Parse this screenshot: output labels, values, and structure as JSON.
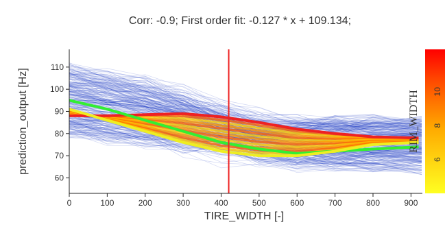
{
  "chart_data": {
    "type": "line",
    "title": "Corr: -0.9; First order fit: -0.127 * x + 109.134;",
    "xlabel": "TIRE_WIDTH  [-]",
    "ylabel": "prediction_output [Hz]",
    "xlim": [
      0,
      930
    ],
    "ylim": [
      53,
      118
    ],
    "x_ticks": [
      "0",
      "100",
      "200",
      "300",
      "400",
      "500",
      "600",
      "700",
      "800",
      "900"
    ],
    "y_ticks": [
      "60",
      "70",
      "80",
      "90",
      "100",
      "110"
    ],
    "vertical_marker_x": 420,
    "background_lines": {
      "count": 300,
      "color": "#2f49c7",
      "min_value": 58,
      "max_value": 112
    },
    "series": [
      {
        "color": "#ee2222",
        "x": [
          0,
          100,
          200,
          300,
          400,
          500,
          600,
          700,
          800,
          920
        ],
        "values": [
          88,
          88,
          88.5,
          89,
          87.5,
          85,
          82,
          80,
          78.5,
          78
        ]
      },
      {
        "color": "#33ee33",
        "x": [
          0,
          100,
          200,
          300,
          400,
          500,
          600,
          700,
          800,
          920
        ],
        "values": [
          95,
          91,
          86,
          81,
          76,
          73,
          71,
          72,
          73,
          74
        ]
      },
      {
        "color": "#eeee22",
        "x": [
          0,
          100,
          200,
          300,
          400,
          500,
          600,
          700,
          800,
          920
        ],
        "values": [
          91,
          86,
          81,
          76,
          72,
          70,
          70,
          72,
          75,
          76
        ]
      }
    ],
    "band_colors": [
      "#ff9900",
      "#ff6600",
      "#ffcc00"
    ],
    "colorbar": {
      "label": "RIM_WIDTH",
      "ticks": [
        "6",
        "8",
        "10"
      ],
      "colors": [
        "#ffff22",
        "#ffaa00",
        "#ff4400",
        "#ff0000"
      ]
    }
  }
}
